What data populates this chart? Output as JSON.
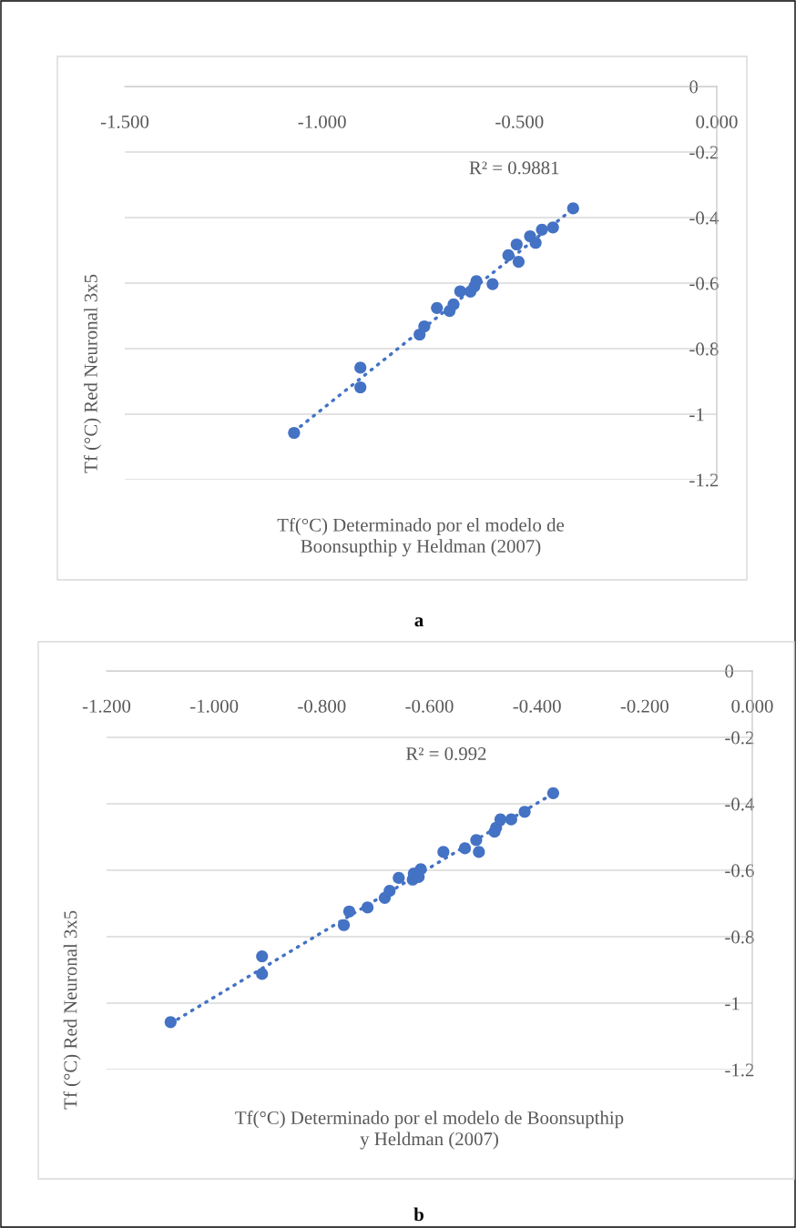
{
  "chart_data": [
    {
      "type": "scatter",
      "xlabel": "Tf(°C) Determinado por el modelo de\nBoonsupthip y Heldman (2007)",
      "ylabel": "Tf (°C) Red Neuronal 3x5",
      "grid": "y",
      "xlim": [
        -1.5,
        0
      ],
      "xticks": [
        {
          "value": -1.5,
          "label": "-1.500"
        },
        {
          "value": -1.0,
          "label": "-1.000"
        },
        {
          "value": -0.5,
          "label": "-0.500"
        },
        {
          "value": 0,
          "label": "0.000"
        }
      ],
      "ylim": [
        -1.2,
        0
      ],
      "yticks": [
        0,
        -0.2,
        -0.4,
        -0.6,
        -0.8,
        -1,
        -1.2
      ],
      "annotations": [
        "R² = 0.9881",
        "a"
      ],
      "series": [
        {
          "marker": "circle",
          "color": "#4472c4",
          "x": [
            -1.071,
            -0.903,
            -0.903,
            -0.753,
            -0.741,
            -0.709,
            -0.677,
            -0.667,
            -0.65,
            -0.624,
            -0.614,
            -0.609,
            -0.568,
            -0.528,
            -0.507,
            -0.502,
            -0.473,
            -0.459,
            -0.443,
            -0.415,
            -0.364
          ],
          "values": [
            -1.057,
            -0.858,
            -0.918,
            -0.757,
            -0.732,
            -0.676,
            -0.685,
            -0.665,
            -0.625,
            -0.626,
            -0.61,
            -0.594,
            -0.603,
            -0.515,
            -0.482,
            -0.535,
            -0.457,
            -0.477,
            -0.437,
            -0.43,
            -0.372
          ]
        },
        {
          "type": "line",
          "marker": "none",
          "line_style": "dotted",
          "color": "#4472c4",
          "x": [
            -1.071,
            -0.364
          ],
          "values": [
            -1.053,
            -0.373
          ]
        }
      ]
    },
    {
      "type": "scatter",
      "xlabel": "Tf(°C) Determinado por el modelo de Boonsupthip\ny Heldman (2007)",
      "ylabel": "Tf (°C) Red Neuronal 3x5",
      "grid": "y",
      "xlim": [
        -1.2,
        0
      ],
      "xticks": [
        {
          "value": -1.2,
          "label": "-1.200"
        },
        {
          "value": -1.0,
          "label": "-1.000"
        },
        {
          "value": -0.8,
          "label": "-0.800"
        },
        {
          "value": -0.6,
          "label": "-0.600"
        },
        {
          "value": -0.4,
          "label": "-0.400"
        },
        {
          "value": -0.2,
          "label": "-0.200"
        },
        {
          "value": 0,
          "label": "0.000"
        }
      ],
      "ylim": [
        -1.2,
        0
      ],
      "yticks": [
        0,
        -0.2,
        -0.4,
        -0.6,
        -0.8,
        -1,
        -1.2
      ],
      "annotations": [
        "R² = 0.992",
        "b"
      ],
      "series": [
        {
          "marker": "circle",
          "color": "#4472c4",
          "x": [
            -1.081,
            -0.911,
            -0.911,
            -0.759,
            -0.749,
            -0.715,
            -0.683,
            -0.674,
            -0.657,
            -0.631,
            -0.629,
            -0.616,
            -0.62,
            -0.574,
            -0.534,
            -0.513,
            -0.508,
            -0.479,
            -0.476,
            -0.468,
            -0.448,
            -0.423,
            -0.37
          ],
          "values": [
            -1.057,
            -0.859,
            -0.912,
            -0.765,
            -0.724,
            -0.712,
            -0.683,
            -0.662,
            -0.623,
            -0.628,
            -0.61,
            -0.597,
            -0.62,
            -0.545,
            -0.534,
            -0.509,
            -0.545,
            -0.484,
            -0.472,
            -0.447,
            -0.447,
            -0.424,
            -0.368
          ]
        },
        {
          "type": "line",
          "marker": "none",
          "line_style": "dotted",
          "color": "#4472c4",
          "x": [
            -1.081,
            -0.37
          ],
          "values": [
            -1.061,
            -0.369
          ]
        }
      ]
    }
  ]
}
